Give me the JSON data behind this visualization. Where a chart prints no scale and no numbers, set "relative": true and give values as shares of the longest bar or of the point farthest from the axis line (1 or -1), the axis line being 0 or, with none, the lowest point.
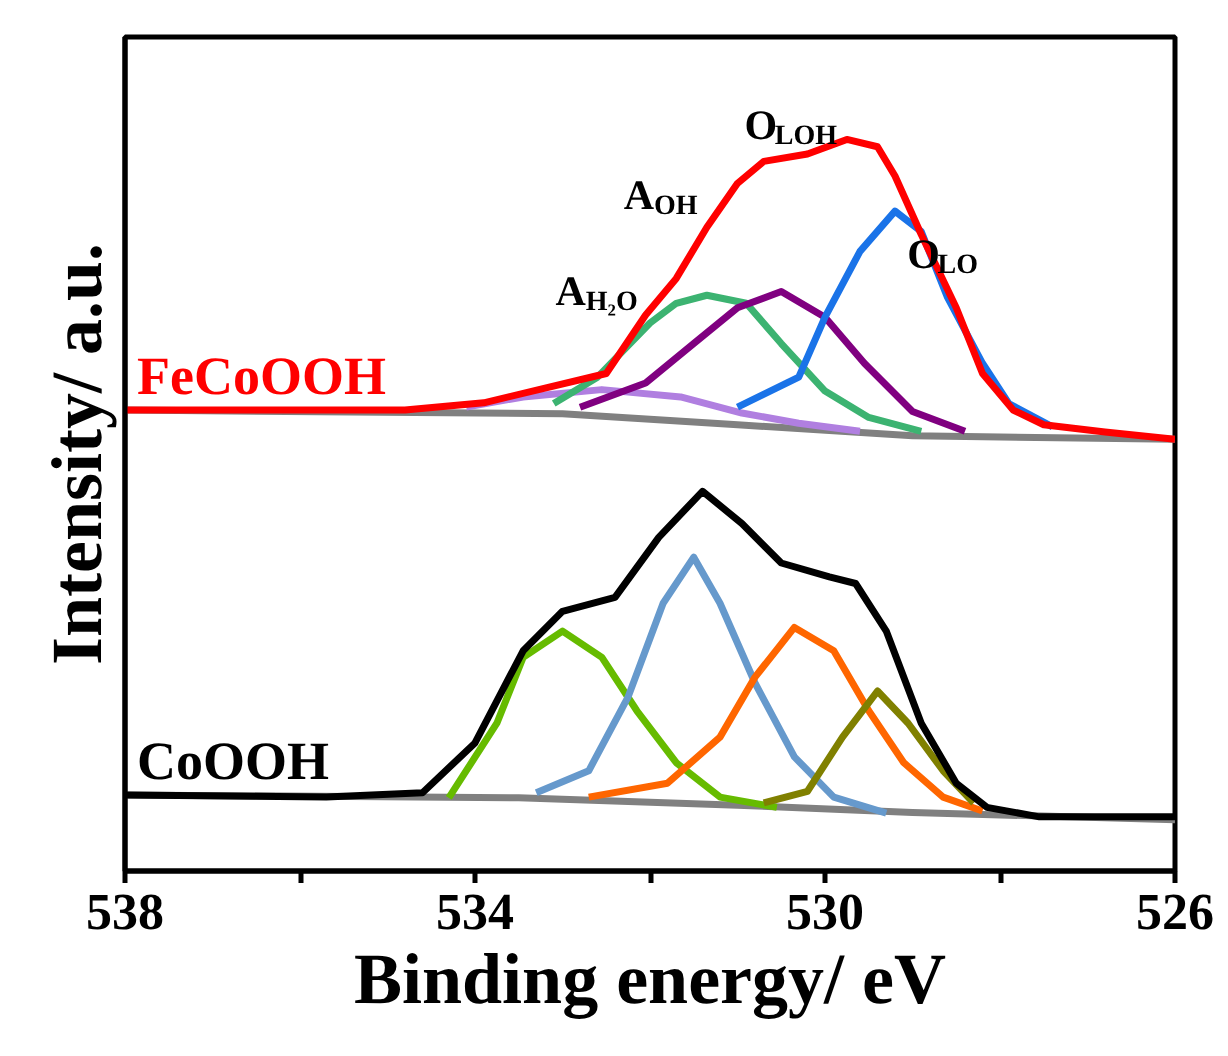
{
  "chart_data": {
    "type": "line",
    "relative": true,
    "xlabel": "Binding energy/ eV",
    "ylabel": "Intensity/ a.u.",
    "xlim": [
      538,
      526
    ],
    "xticks": [
      538,
      {
        "value": 536,
        "label": null
      },
      534,
      {
        "value": 532,
        "label": null
      },
      530,
      {
        "value": 528,
        "label": null
      },
      526
    ],
    "ylim": [
      0,
      1.14
    ],
    "grid": false,
    "marker": "none",
    "line_style": "solid",
    "series": [
      {
        "color": "#808080",
        "x": [
          538,
          533,
          531,
          529,
          526
        ],
        "values": [
          0.63,
          0.625,
          0.61,
          0.595,
          0.59
        ]
      },
      {
        "color": "#b07fe0",
        "x": [
          534.1,
          533.45,
          532.55,
          531.65,
          530.95,
          530.3,
          529.6
        ],
        "values": [
          0.634,
          0.648,
          0.658,
          0.648,
          0.626,
          0.612,
          0.601
        ]
      },
      {
        "color": "#3cb371",
        "x": [
          533.1,
          532.6,
          532.0,
          531.7,
          531.35,
          530.9,
          530.5,
          530.0,
          529.5,
          528.9
        ],
        "values": [
          0.639,
          0.675,
          0.749,
          0.776,
          0.787,
          0.776,
          0.721,
          0.656,
          0.62,
          0.601
        ]
      },
      {
        "color": "#800080",
        "x": [
          532.8,
          532.05,
          531.5,
          531.0,
          530.5,
          530.0,
          529.55,
          529.0,
          528.4
        ],
        "values": [
          0.634,
          0.667,
          0.721,
          0.77,
          0.792,
          0.757,
          0.694,
          0.628,
          0.601
        ]
      },
      {
        "color": "#1a73e8",
        "x": [
          531.0,
          530.3,
          530.0,
          529.6,
          529.2,
          528.9,
          528.6,
          528.2,
          527.9,
          527.4
        ],
        "values": [
          0.634,
          0.675,
          0.757,
          0.847,
          0.902,
          0.874,
          0.784,
          0.694,
          0.639,
          0.607
        ]
      },
      {
        "name": "FeCoOOH",
        "color": "#ff0000",
        "x": [
          538,
          536,
          534.8,
          533.9,
          533.2,
          532.5,
          532.05,
          531.7,
          531.35,
          531.0,
          530.7,
          530.2,
          529.75,
          529.4,
          529.2,
          528.9,
          528.5,
          528.2,
          527.85,
          527.5,
          526.8,
          526
        ],
        "values": [
          0.63,
          0.63,
          0.63,
          0.64,
          0.66,
          0.68,
          0.76,
          0.81,
          0.88,
          0.94,
          0.97,
          0.98,
          1.0,
          0.99,
          0.95,
          0.87,
          0.77,
          0.68,
          0.63,
          0.61,
          0.6,
          0.59
        ]
      },
      {
        "color": "#808080",
        "x": [
          538,
          533.5,
          531,
          529,
          526
        ],
        "values": [
          0.104,
          0.1,
          0.09,
          0.08,
          0.07
        ]
      },
      {
        "color": "#66bb00",
        "x": [
          534.3,
          533.75,
          533.45,
          533.0,
          532.55,
          532.15,
          531.7,
          531.2,
          530.55
        ],
        "values": [
          0.1,
          0.202,
          0.292,
          0.328,
          0.292,
          0.219,
          0.148,
          0.101,
          0.087
        ]
      },
      {
        "color": "#6699cc",
        "x": [
          533.3,
          532.7,
          532.25,
          531.85,
          531.5,
          531.2,
          530.8,
          530.35,
          529.9,
          529.3
        ],
        "values": [
          0.107,
          0.137,
          0.238,
          0.366,
          0.429,
          0.366,
          0.257,
          0.156,
          0.101,
          0.079
        ]
      },
      {
        "color": "#ff6600",
        "x": [
          532.7,
          531.8,
          531.2,
          530.8,
          530.35,
          529.9,
          529.5,
          529.1,
          528.65,
          528.2
        ],
        "values": [
          0.101,
          0.12,
          0.183,
          0.265,
          0.333,
          0.301,
          0.219,
          0.148,
          0.101,
          0.082
        ]
      },
      {
        "color": "#808000",
        "x": [
          530.7,
          530.2,
          529.8,
          529.4,
          529.05,
          528.65,
          528.3
        ],
        "values": [
          0.093,
          0.109,
          0.183,
          0.246,
          0.202,
          0.137,
          0.093
        ]
      },
      {
        "name": "CoOOH",
        "color": "#000000",
        "x": [
          538,
          535.7,
          534.6,
          534.0,
          533.45,
          533.0,
          532.4,
          531.9,
          531.4,
          530.95,
          530.5,
          529.95,
          529.65,
          529.3,
          528.9,
          528.5,
          528.15,
          527.55,
          526
        ],
        "values": [
          0.104,
          0.101,
          0.107,
          0.175,
          0.301,
          0.355,
          0.374,
          0.456,
          0.519,
          0.475,
          0.421,
          0.402,
          0.393,
          0.328,
          0.202,
          0.12,
          0.087,
          0.074,
          0.074
        ]
      }
    ],
    "annotations": [
      "A$_{H₂O}$",
      "A$_{OH}$",
      "O$_{LOH}$",
      "O$_{LO}$"
    ]
  }
}
